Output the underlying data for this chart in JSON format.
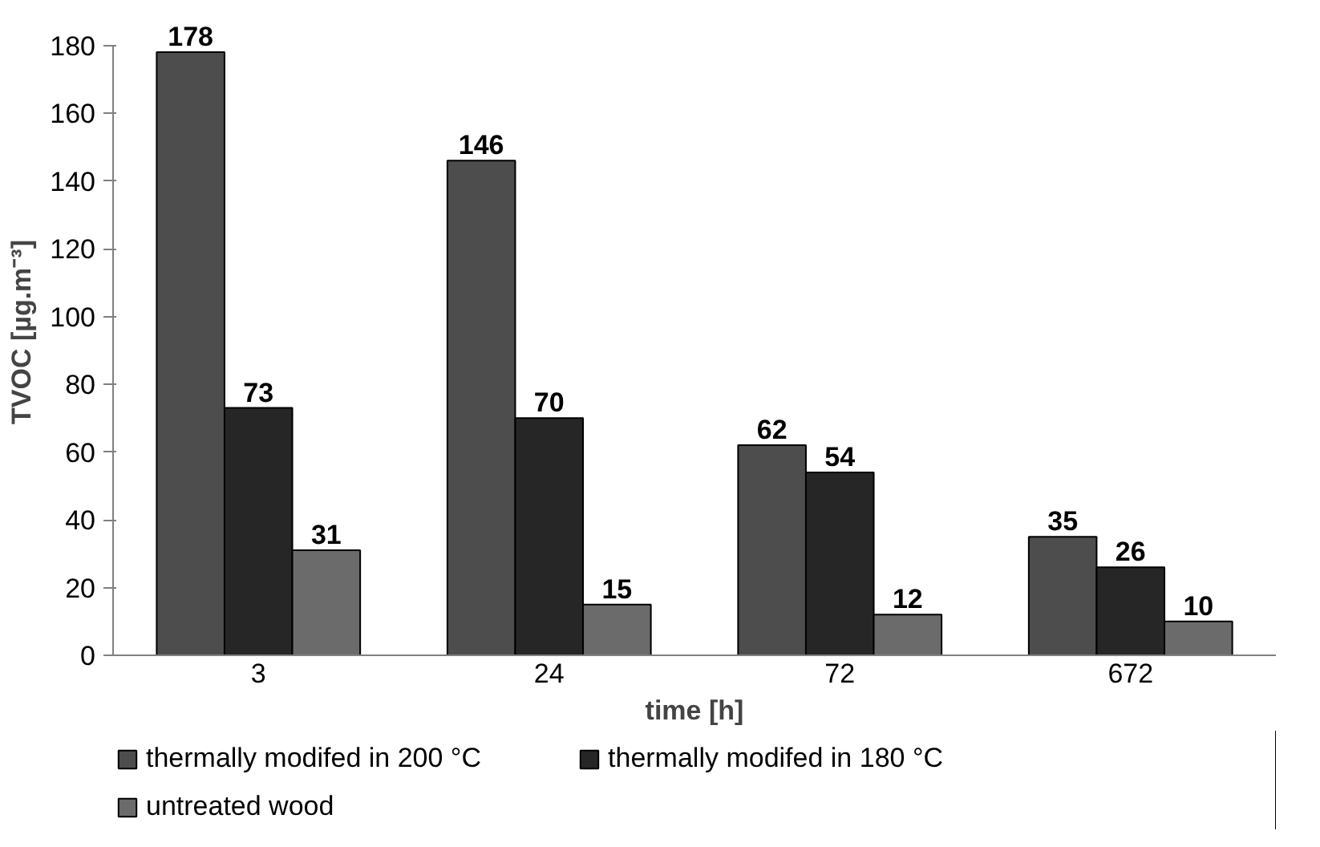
{
  "chart_data": {
    "type": "bar",
    "xlabel": "time [h]",
    "ylabel": "TVOC [µg.m⁻³]",
    "categories": [
      "3",
      "24",
      "72",
      "672"
    ],
    "series": [
      {
        "name": "thermally modifed in 200 °C",
        "color": "#4d4d4d",
        "values": [
          178,
          146,
          62,
          35
        ]
      },
      {
        "name": "thermally modifed in 180 °C",
        "color": "#262626",
        "values": [
          73,
          70,
          54,
          26
        ]
      },
      {
        "name": "untreated wood",
        "color": "#6b6b6b",
        "values": [
          31,
          15,
          12,
          10
        ]
      }
    ],
    "ylim": [
      0,
      180
    ],
    "yticks": [
      0,
      20,
      40,
      60,
      80,
      100,
      120,
      140,
      160,
      180
    ],
    "grid": false,
    "legend": "bottom",
    "data_labels": true
  }
}
